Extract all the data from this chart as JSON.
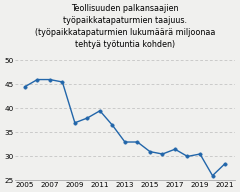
{
  "title": "Teollisuuden palkansaajien\ntyöpaikkatapaturmien taajuus.\n(työpaikkatapaturmien lukumäärä miljoonaa\ntehtyä työtuntia kohden)",
  "years": [
    2005,
    2006,
    2007,
    2008,
    2009,
    2010,
    2011,
    2012,
    2013,
    2014,
    2015,
    2016,
    2017,
    2018,
    2019,
    2020,
    2021
  ],
  "values": [
    44.5,
    46.0,
    46.0,
    45.5,
    37.0,
    38.0,
    39.5,
    36.5,
    33.0,
    33.0,
    31.0,
    30.5,
    31.5,
    30.0,
    30.5,
    26.0,
    28.5
  ],
  "line_color": "#2266aa",
  "marker": "o",
  "marker_size": 2.5,
  "ylim": [
    25,
    52
  ],
  "yticks": [
    25,
    30,
    35,
    40,
    45,
    50
  ],
  "xticks": [
    2005,
    2007,
    2009,
    2011,
    2013,
    2015,
    2017,
    2019,
    2021
  ],
  "background_color": "#f0f0ee",
  "grid_color": "#bbbbbb",
  "title_fontsize": 5.8,
  "tick_fontsize": 5.2
}
